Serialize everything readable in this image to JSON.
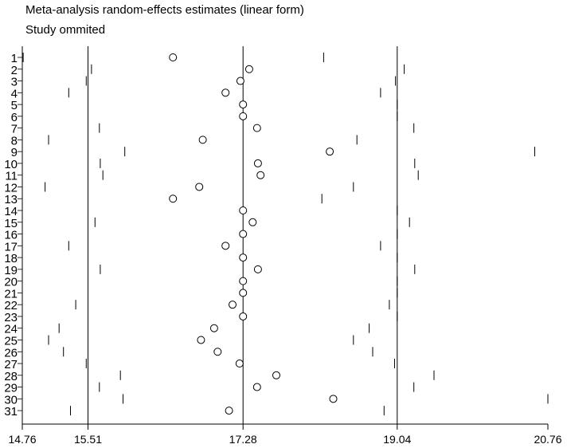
{
  "title": "Meta-analysis random-effects estimates (linear form)",
  "subtitle": "Study ommited",
  "chart_data": {
    "type": "scatter",
    "title": "Meta-analysis random-effects estimates (linear form)",
    "subtitle": "Study ommited",
    "x_ticks": [
      14.76,
      15.51,
      17.28,
      19.04,
      20.76
    ],
    "xlim": [
      14.76,
      20.76
    ],
    "reference_lines": {
      "lower_ci": 15.51,
      "estimate": 17.28,
      "upper_ci": 19.04
    },
    "studies": [
      {
        "label": "1",
        "lower": 14.77,
        "estimate": 16.48,
        "upper": 18.2
      },
      {
        "label": "2",
        "lower": 15.55,
        "estimate": 17.35,
        "upper": 19.12
      },
      {
        "label": "3",
        "lower": 15.49,
        "estimate": 17.25,
        "upper": 19.02
      },
      {
        "label": "4",
        "lower": 15.29,
        "estimate": 17.08,
        "upper": 18.85
      },
      {
        "label": "5",
        "lower": 15.51,
        "estimate": 17.28,
        "upper": 19.04
      },
      {
        "label": "6",
        "lower": 15.51,
        "estimate": 17.28,
        "upper": 19.04
      },
      {
        "label": "7",
        "lower": 15.64,
        "estimate": 17.44,
        "upper": 19.23
      },
      {
        "label": "8",
        "lower": 15.06,
        "estimate": 16.82,
        "upper": 18.58
      },
      {
        "label": "9",
        "lower": 15.93,
        "estimate": 18.27,
        "upper": 20.61
      },
      {
        "label": "10",
        "lower": 15.65,
        "estimate": 17.45,
        "upper": 19.24
      },
      {
        "label": "11",
        "lower": 15.68,
        "estimate": 17.48,
        "upper": 19.28
      },
      {
        "label": "12",
        "lower": 15.02,
        "estimate": 16.78,
        "upper": 18.54
      },
      {
        "label": "13",
        "lower": 15.51,
        "estimate": 16.48,
        "upper": 18.18
      },
      {
        "label": "14",
        "lower": 15.51,
        "estimate": 17.28,
        "upper": 19.04
      },
      {
        "label": "15",
        "lower": 15.59,
        "estimate": 17.39,
        "upper": 19.18
      },
      {
        "label": "16",
        "lower": 15.51,
        "estimate": 17.28,
        "upper": 19.04
      },
      {
        "label": "17",
        "lower": 15.29,
        "estimate": 17.08,
        "upper": 18.85
      },
      {
        "label": "18",
        "lower": 15.51,
        "estimate": 17.28,
        "upper": 19.04
      },
      {
        "label": "19",
        "lower": 15.65,
        "estimate": 17.45,
        "upper": 19.24
      },
      {
        "label": "20",
        "lower": 15.51,
        "estimate": 17.28,
        "upper": 19.04
      },
      {
        "label": "21",
        "lower": 15.51,
        "estimate": 17.28,
        "upper": 19.04
      },
      {
        "label": "22",
        "lower": 15.37,
        "estimate": 17.16,
        "upper": 18.95
      },
      {
        "label": "23",
        "lower": 15.51,
        "estimate": 17.28,
        "upper": 19.04
      },
      {
        "label": "24",
        "lower": 15.18,
        "estimate": 16.95,
        "upper": 18.72
      },
      {
        "label": "25",
        "lower": 15.06,
        "estimate": 16.8,
        "upper": 18.54
      },
      {
        "label": "26",
        "lower": 15.23,
        "estimate": 16.99,
        "upper": 18.76
      },
      {
        "label": "27",
        "lower": 15.49,
        "estimate": 17.24,
        "upper": 19.01
      },
      {
        "label": "28",
        "lower": 15.88,
        "estimate": 17.66,
        "upper": 19.46
      },
      {
        "label": "29",
        "lower": 15.64,
        "estimate": 17.44,
        "upper": 19.23
      },
      {
        "label": "30",
        "lower": 15.91,
        "estimate": 18.31,
        "upper": 20.76
      },
      {
        "label": "31",
        "lower": 15.31,
        "estimate": 17.12,
        "upper": 18.89
      }
    ]
  }
}
